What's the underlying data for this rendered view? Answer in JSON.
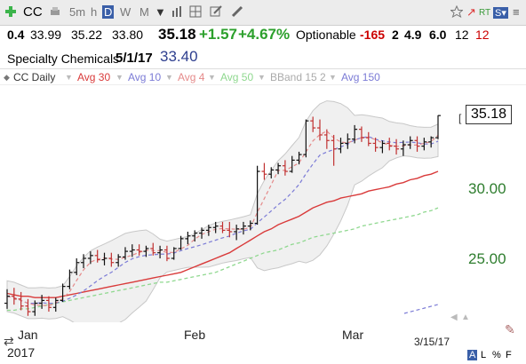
{
  "toolbar": {
    "symbol": "CC",
    "intervals": [
      "5m",
      "h",
      "D",
      "W",
      "M"
    ],
    "selected_interval": "D",
    "right_labels": [
      "RT",
      "S▾"
    ]
  },
  "quote": {
    "change_prefix": "0.4",
    "open": "33.99",
    "high": "35.22",
    "low": "33.80",
    "last": "35.18",
    "change": "+1.57",
    "change_pct": "+4.67%",
    "optionable": "Optionable",
    "v1": "-165",
    "v2": "2",
    "v3": "4.9",
    "v4": "6.0",
    "v5": "12",
    "v6": "12"
  },
  "info": {
    "industry": "Specialty Chemicals",
    "date": "5/1/17",
    "value": "33.40"
  },
  "legend": {
    "items": [
      {
        "label": "CC Daily",
        "color": "#333333"
      },
      {
        "label": "Avg 30",
        "color": "#d93a3a"
      },
      {
        "label": "Avg 10",
        "color": "#7b7bd6"
      },
      {
        "label": "Avg 4",
        "color": "#e58a8a"
      },
      {
        "label": "Avg 50",
        "color": "#8fd88f"
      },
      {
        "label": "BBand 15 2",
        "color": "#aaaaaa"
      },
      {
        "label": "Avg 150",
        "color": "#7b7bd6"
      }
    ]
  },
  "chart_data": {
    "type": "line",
    "y_ticks": [
      "30.00",
      "25.00"
    ],
    "x_ticks": [
      "Jan",
      "Feb",
      "Mar"
    ],
    "last_price": "35.18",
    "date_label": "3/15/17",
    "year_label": "2017",
    "footer_labels": [
      "A",
      "L",
      "%",
      "F"
    ],
    "bars": [
      [
        21.8,
        22.8,
        21.4,
        22.3
      ],
      [
        22.3,
        22.9,
        21.7,
        22.1
      ],
      [
        22.1,
        22.6,
        21.3,
        21.6
      ],
      [
        21.6,
        22.1,
        20.9,
        21.2
      ],
      [
        21.2,
        22.0,
        20.9,
        21.8
      ],
      [
        21.8,
        22.4,
        21.4,
        22.0
      ],
      [
        22.0,
        22.3,
        21.2,
        21.5
      ],
      [
        21.5,
        22.2,
        21.2,
        22.0
      ],
      [
        22.0,
        23.2,
        21.9,
        23.0
      ],
      [
        23.0,
        24.2,
        22.8,
        24.0
      ],
      [
        24.0,
        25.0,
        23.8,
        24.7
      ],
      [
        24.7,
        25.3,
        24.3,
        25.0
      ],
      [
        25.0,
        25.5,
        24.6,
        25.2
      ],
      [
        25.2,
        25.6,
        24.7,
        24.9
      ],
      [
        24.9,
        25.4,
        24.5,
        25.0
      ],
      [
        25.0,
        25.4,
        24.4,
        24.7
      ],
      [
        24.7,
        25.3,
        24.4,
        25.1
      ],
      [
        25.1,
        25.8,
        24.9,
        25.5
      ],
      [
        25.5,
        26.0,
        25.1,
        25.6
      ],
      [
        25.6,
        26.0,
        25.2,
        25.5
      ],
      [
        25.5,
        25.9,
        25.1,
        25.7
      ],
      [
        25.7,
        26.1,
        25.2,
        25.4
      ],
      [
        25.4,
        25.9,
        25.0,
        25.6
      ],
      [
        25.6,
        25.9,
        24.8,
        25.0
      ],
      [
        25.0,
        25.8,
        24.9,
        25.7
      ],
      [
        25.7,
        26.6,
        25.6,
        26.4
      ],
      [
        26.4,
        26.9,
        26.0,
        26.6
      ],
      [
        26.6,
        27.0,
        26.2,
        26.8
      ],
      [
        26.8,
        27.2,
        26.4,
        27.0
      ],
      [
        27.0,
        27.4,
        26.6,
        27.2
      ],
      [
        27.2,
        27.6,
        26.8,
        27.3
      ],
      [
        27.3,
        27.6,
        26.8,
        27.0
      ],
      [
        27.0,
        27.6,
        26.5,
        26.9
      ],
      [
        26.9,
        27.4,
        26.3,
        27.1
      ],
      [
        27.1,
        27.6,
        26.7,
        27.3
      ],
      [
        27.3,
        27.7,
        27.0,
        27.5
      ],
      [
        27.5,
        31.6,
        27.4,
        31.2
      ],
      [
        31.2,
        31.8,
        30.6,
        31.0
      ],
      [
        31.0,
        31.5,
        30.7,
        31.3
      ],
      [
        31.3,
        31.8,
        31.0,
        31.6
      ],
      [
        31.6,
        32.0,
        30.9,
        31.2
      ],
      [
        31.2,
        32.3,
        31.1,
        32.0
      ],
      [
        32.0,
        32.6,
        31.7,
        32.4
      ],
      [
        32.4,
        34.9,
        32.2,
        34.8
      ],
      [
        34.8,
        35.1,
        34.0,
        34.3
      ],
      [
        34.3,
        34.9,
        33.4,
        33.8
      ],
      [
        33.8,
        34.2,
        32.8,
        33.4
      ],
      [
        33.4,
        33.8,
        31.6,
        32.8
      ],
      [
        32.8,
        33.6,
        32.5,
        33.2
      ],
      [
        33.2,
        33.9,
        32.8,
        33.5
      ],
      [
        33.5,
        34.5,
        33.2,
        34.2
      ],
      [
        34.2,
        34.4,
        33.3,
        33.6
      ],
      [
        33.6,
        34.0,
        33.0,
        33.2
      ],
      [
        33.2,
        33.6,
        32.6,
        32.9
      ],
      [
        32.9,
        33.4,
        32.5,
        33.2
      ],
      [
        33.2,
        33.6,
        32.7,
        33.0
      ],
      [
        33.0,
        33.5,
        32.4,
        32.8
      ],
      [
        32.8,
        33.4,
        32.3,
        33.1
      ],
      [
        33.1,
        33.7,
        32.8,
        33.4
      ],
      [
        33.4,
        33.7,
        32.6,
        33.0
      ],
      [
        33.0,
        33.6,
        32.7,
        33.3
      ],
      [
        33.3,
        33.7,
        32.9,
        33.6
      ],
      [
        33.6,
        35.2,
        33.5,
        35.18
      ]
    ],
    "avg30": [
      22.5,
      22.4,
      22.3,
      22.3,
      22.2,
      22.2,
      22.2,
      22.2,
      22.3,
      22.4,
      22.5,
      22.6,
      22.7,
      22.8,
      22.9,
      23.0,
      23.1,
      23.2,
      23.3,
      23.4,
      23.5,
      23.6,
      23.7,
      23.8,
      23.9,
      24.0,
      24.2,
      24.4,
      24.6,
      24.8,
      25.0,
      25.2,
      25.4,
      25.7,
      26.0,
      26.3,
      26.6,
      26.9,
      27.1,
      27.4,
      27.6,
      27.8,
      28.0,
      28.3,
      28.6,
      28.8,
      29.0,
      29.1,
      29.3,
      29.4,
      29.5,
      29.6,
      29.8,
      29.9,
      30.0,
      30.1,
      30.3,
      30.4,
      30.6,
      30.7,
      30.9,
      31.0,
      31.2
    ],
    "avg50": [
      21.3,
      21.3,
      21.4,
      21.4,
      21.5,
      21.6,
      21.7,
      21.8,
      21.9,
      22.0,
      22.1,
      22.2,
      22.3,
      22.4,
      22.5,
      22.6,
      22.7,
      22.8,
      22.9,
      23.0,
      23.1,
      23.2,
      23.3,
      23.3,
      23.4,
      23.5,
      23.6,
      23.7,
      23.8,
      23.9,
      24.0,
      24.2,
      24.4,
      24.6,
      24.8,
      25.0,
      25.2,
      25.4,
      25.5,
      25.6,
      25.8,
      26.0,
      26.1,
      26.3,
      26.5,
      26.6,
      26.7,
      26.8,
      26.9,
      27.0,
      27.1,
      27.3,
      27.4,
      27.5,
      27.6,
      27.7,
      27.8,
      27.9,
      28.0,
      28.1,
      28.3,
      28.4,
      28.6
    ]
  }
}
